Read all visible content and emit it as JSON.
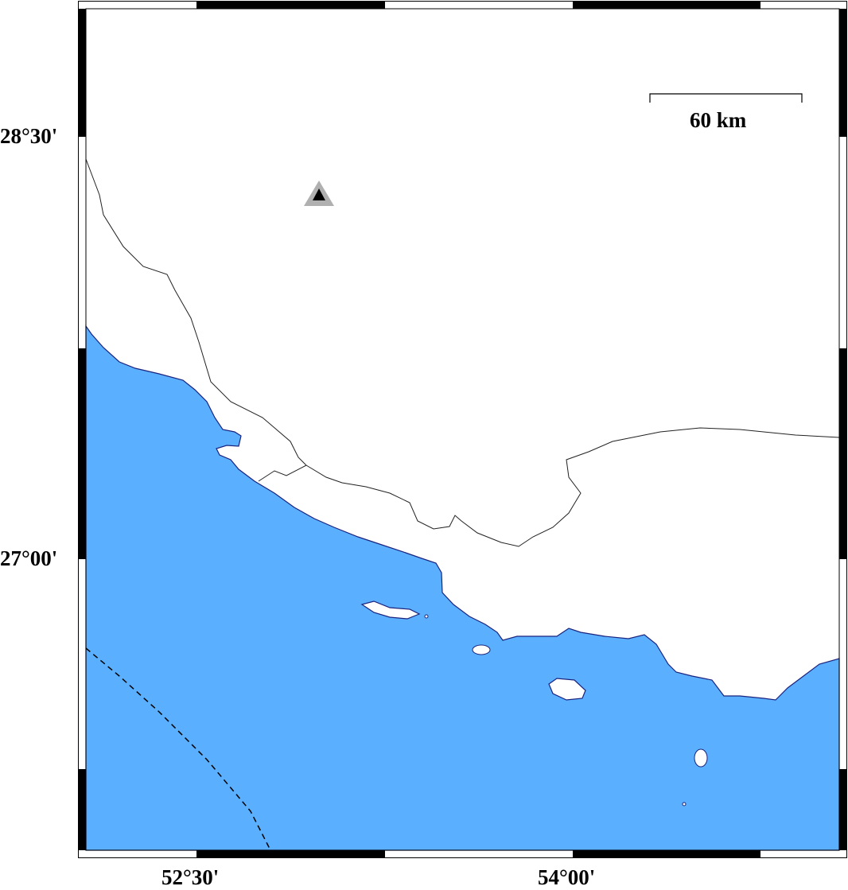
{
  "map": {
    "colors": {
      "sea": "#5AB0FF",
      "land": "#FFFFFF",
      "coast": "#1a237e",
      "border": "#000000",
      "marker_outer": "#B0B0B0",
      "marker_inner": "#000000"
    },
    "lat_labels": [
      "28°30'",
      "27°00'"
    ],
    "lon_labels": [
      "52°30'",
      "54°00'"
    ],
    "scale_bar": {
      "label": "60 km"
    },
    "marker": {
      "icon": "triangle-station-icon"
    }
  }
}
